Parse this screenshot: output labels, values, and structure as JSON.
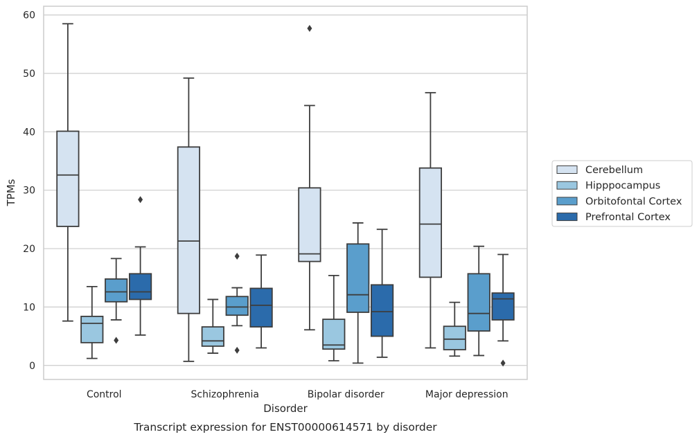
{
  "chart_data": {
    "type": "boxplot",
    "xlabel": "Disorder",
    "ylabel": "TPMs",
    "caption": "Transcript expression for ENST00000614571 by disorder",
    "ylim": [
      -2.4,
      61.5
    ],
    "yticks": [
      "0",
      "10",
      "20",
      "30",
      "40",
      "50",
      "60"
    ],
    "grid": true,
    "legend_position": "right",
    "categories": [
      "Control",
      "Schizophrenia",
      "Bipolar disorder",
      "Major depression"
    ],
    "series": [
      {
        "name": "Cerebellum",
        "color": "#d5e3f1",
        "boxes": [
          {
            "whisker_low": 7.6,
            "q1": 23.8,
            "median": 32.6,
            "q3": 40.1,
            "whisker_high": 58.5,
            "outliers": []
          },
          {
            "whisker_low": 0.7,
            "q1": 8.9,
            "median": 21.3,
            "q3": 37.4,
            "whisker_high": 49.2,
            "outliers": []
          },
          {
            "whisker_low": 6.1,
            "q1": 17.8,
            "median": 19.1,
            "q3": 30.4,
            "whisker_high": 44.5,
            "outliers": [
              57.7
            ]
          },
          {
            "whisker_low": 3.0,
            "q1": 15.1,
            "median": 24.2,
            "q3": 33.8,
            "whisker_high": 46.7,
            "outliers": []
          }
        ]
      },
      {
        "name": "Hipppocampus",
        "color": "#9ac7e0",
        "boxes": [
          {
            "whisker_low": 1.2,
            "q1": 3.9,
            "median": 7.2,
            "q3": 8.4,
            "whisker_high": 13.5,
            "outliers": []
          },
          {
            "whisker_low": 2.1,
            "q1": 3.3,
            "median": 4.2,
            "q3": 6.6,
            "whisker_high": 11.3,
            "outliers": []
          },
          {
            "whisker_low": 0.8,
            "q1": 2.8,
            "median": 3.5,
            "q3": 7.9,
            "whisker_high": 15.4,
            "outliers": []
          },
          {
            "whisker_low": 1.6,
            "q1": 2.7,
            "median": 4.5,
            "q3": 6.7,
            "whisker_high": 10.8,
            "outliers": []
          }
        ]
      },
      {
        "name": "Orbitofontal Cortex",
        "color": "#5a9ecc",
        "boxes": [
          {
            "whisker_low": 7.8,
            "q1": 10.9,
            "median": 12.6,
            "q3": 14.8,
            "whisker_high": 18.3,
            "outliers": [
              4.3
            ]
          },
          {
            "whisker_low": 6.8,
            "q1": 8.6,
            "median": 10.0,
            "q3": 11.8,
            "whisker_high": 13.3,
            "outliers": [
              18.7,
              2.6
            ]
          },
          {
            "whisker_low": 0.4,
            "q1": 9.1,
            "median": 12.1,
            "q3": 20.8,
            "whisker_high": 24.4,
            "outliers": []
          },
          {
            "whisker_low": 1.7,
            "q1": 5.9,
            "median": 8.9,
            "q3": 15.7,
            "whisker_high": 20.4,
            "outliers": []
          }
        ]
      },
      {
        "name": "Prefrontal Cortex",
        "color": "#2b6bab",
        "boxes": [
          {
            "whisker_low": 5.2,
            "q1": 11.3,
            "median": 12.6,
            "q3": 15.7,
            "whisker_high": 20.3,
            "outliers": [
              28.4
            ]
          },
          {
            "whisker_low": 3.0,
            "q1": 6.6,
            "median": 10.3,
            "q3": 13.2,
            "whisker_high": 18.9,
            "outliers": []
          },
          {
            "whisker_low": 1.4,
            "q1": 5.0,
            "median": 9.2,
            "q3": 13.8,
            "whisker_high": 23.3,
            "outliers": []
          },
          {
            "whisker_low": 4.2,
            "q1": 7.8,
            "median": 11.4,
            "q3": 12.4,
            "whisker_high": 19.0,
            "outliers": [
              0.4
            ]
          }
        ]
      }
    ]
  }
}
